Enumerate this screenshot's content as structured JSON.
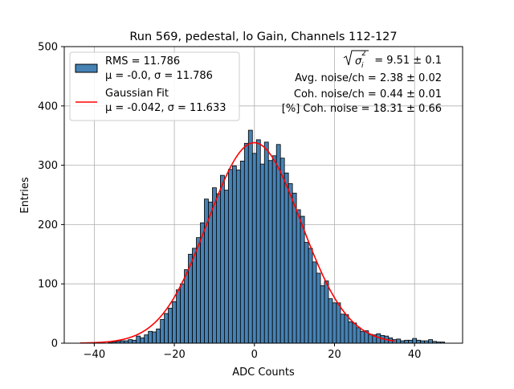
{
  "chart_data": {
    "type": "bar",
    "title": "Run 569, pedestal, lo Gain, Channels 112-127",
    "xlabel": "ADC Counts",
    "ylabel": "Entries",
    "xlim": [
      -47.5,
      52
    ],
    "ylim": [
      0,
      500
    ],
    "xticks": [
      -40,
      -20,
      0,
      20,
      40
    ],
    "xtick_labels": [
      "−40",
      "−20",
      "0",
      "20",
      "40"
    ],
    "yticks": [
      0,
      100,
      200,
      300,
      400,
      500
    ],
    "ytick_labels": [
      "0",
      "100",
      "200",
      "300",
      "400",
      "500"
    ],
    "grid": true,
    "legend_position": "top-left",
    "bin_width": 1,
    "bins": [
      {
        "x": -36,
        "y": 1
      },
      {
        "x": -35,
        "y": 2
      },
      {
        "x": -34,
        "y": 3
      },
      {
        "x": -33,
        "y": 4
      },
      {
        "x": -32,
        "y": 4
      },
      {
        "x": -31,
        "y": 6
      },
      {
        "x": -30,
        "y": 5
      },
      {
        "x": -29,
        "y": 12
      },
      {
        "x": -28,
        "y": 9
      },
      {
        "x": -27,
        "y": 14
      },
      {
        "x": -26,
        "y": 20
      },
      {
        "x": -25,
        "y": 19
      },
      {
        "x": -24,
        "y": 24
      },
      {
        "x": -23,
        "y": 40
      },
      {
        "x": -22,
        "y": 50
      },
      {
        "x": -21,
        "y": 59
      },
      {
        "x": -20,
        "y": 70
      },
      {
        "x": -19,
        "y": 90
      },
      {
        "x": -18,
        "y": 100
      },
      {
        "x": -17,
        "y": 124
      },
      {
        "x": -16,
        "y": 150
      },
      {
        "x": -15,
        "y": 160
      },
      {
        "x": -14,
        "y": 178
      },
      {
        "x": -13,
        "y": 203
      },
      {
        "x": -12,
        "y": 243
      },
      {
        "x": -11,
        "y": 238
      },
      {
        "x": -10,
        "y": 262
      },
      {
        "x": -9,
        "y": 252
      },
      {
        "x": -8,
        "y": 283
      },
      {
        "x": -7,
        "y": 258
      },
      {
        "x": -6,
        "y": 293
      },
      {
        "x": -5,
        "y": 299
      },
      {
        "x": -4,
        "y": 292
      },
      {
        "x": -3,
        "y": 307
      },
      {
        "x": -2,
        "y": 337
      },
      {
        "x": -1,
        "y": 359
      },
      {
        "x": 0,
        "y": 320
      },
      {
        "x": 1,
        "y": 343
      },
      {
        "x": 2,
        "y": 302
      },
      {
        "x": 3,
        "y": 339
      },
      {
        "x": 4,
        "y": 308
      },
      {
        "x": 5,
        "y": 316
      },
      {
        "x": 6,
        "y": 335
      },
      {
        "x": 7,
        "y": 312
      },
      {
        "x": 8,
        "y": 287
      },
      {
        "x": 9,
        "y": 269
      },
      {
        "x": 10,
        "y": 253
      },
      {
        "x": 11,
        "y": 225
      },
      {
        "x": 12,
        "y": 214
      },
      {
        "x": 13,
        "y": 170
      },
      {
        "x": 14,
        "y": 160
      },
      {
        "x": 15,
        "y": 137
      },
      {
        "x": 16,
        "y": 118
      },
      {
        "x": 17,
        "y": 97
      },
      {
        "x": 18,
        "y": 105
      },
      {
        "x": 19,
        "y": 75
      },
      {
        "x": 20,
        "y": 68
      },
      {
        "x": 21,
        "y": 68
      },
      {
        "x": 22,
        "y": 49
      },
      {
        "x": 23,
        "y": 48
      },
      {
        "x": 24,
        "y": 36
      },
      {
        "x": 25,
        "y": 34
      },
      {
        "x": 26,
        "y": 26
      },
      {
        "x": 27,
        "y": 20
      },
      {
        "x": 28,
        "y": 21
      },
      {
        "x": 29,
        "y": 15
      },
      {
        "x": 30,
        "y": 14
      },
      {
        "x": 31,
        "y": 16
      },
      {
        "x": 32,
        "y": 13
      },
      {
        "x": 33,
        "y": 12
      },
      {
        "x": 34,
        "y": 9
      },
      {
        "x": 35,
        "y": 6
      },
      {
        "x": 36,
        "y": 7
      },
      {
        "x": 37,
        "y": 4
      },
      {
        "x": 38,
        "y": 5
      },
      {
        "x": 39,
        "y": 5
      },
      {
        "x": 40,
        "y": 8
      },
      {
        "x": 41,
        "y": 5
      },
      {
        "x": 42,
        "y": 4
      },
      {
        "x": 43,
        "y": 4
      },
      {
        "x": 44,
        "y": 6
      },
      {
        "x": 45,
        "y": 3
      },
      {
        "x": 46,
        "y": 2
      },
      {
        "x": 47,
        "y": 2
      }
    ],
    "histogram_color": "#4682b4",
    "fit": {
      "type": "gaussian",
      "mu": -0.042,
      "sigma": 11.633,
      "amplitude": 338,
      "x_range": [
        -43.5,
        35
      ],
      "color": "#ff0000"
    },
    "legend": [
      {
        "kind": "patch",
        "line1": "RMS = 11.786",
        "line2": "μ = -0.0, σ = 11.786"
      },
      {
        "kind": "line",
        "line1": "Gaussian Fit",
        "line2": "μ = -0.042, σ = 11.633"
      }
    ],
    "annotations": {
      "sigma_sq_value": "= 9.51 ± 0.1",
      "sigma_symbol": "σ",
      "sigma_sub": "i",
      "sigma_sup": "2",
      "avg_noise": "Avg. noise/ch = 2.38 ± 0.02",
      "coh_noise": "Coh. noise/ch = 0.44 ± 0.01",
      "coh_percent": "[%] Coh. noise = 18.31 ± 0.66"
    }
  }
}
